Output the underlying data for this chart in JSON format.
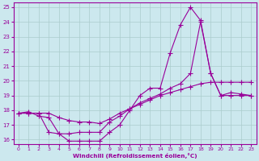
{
  "xlabel": "Windchill (Refroidissement éolien,°C)",
  "bg_color": "#cce8ee",
  "line_color": "#990099",
  "grid_color": "#aacccc",
  "xlim": [
    -0.5,
    23.5
  ],
  "ylim": [
    15.7,
    25.3
  ],
  "yticks": [
    16,
    17,
    18,
    19,
    20,
    21,
    22,
    23,
    24,
    25
  ],
  "xticks": [
    0,
    1,
    2,
    3,
    4,
    5,
    6,
    7,
    8,
    9,
    10,
    11,
    12,
    13,
    14,
    15,
    16,
    17,
    18,
    19,
    20,
    21,
    22,
    23
  ],
  "line1_x": [
    0,
    1,
    2,
    3,
    4,
    5,
    6,
    7,
    8,
    9,
    10,
    11,
    12,
    13,
    14,
    15,
    16,
    17,
    18,
    19,
    20,
    21,
    22,
    23
  ],
  "line1_y": [
    17.8,
    17.9,
    17.6,
    17.5,
    16.4,
    15.9,
    15.9,
    15.9,
    15.9,
    16.5,
    17.0,
    18.0,
    19.0,
    19.5,
    19.5,
    21.9,
    23.8,
    25.0,
    24.1,
    20.5,
    19.0,
    19.2,
    19.1,
    19.0
  ],
  "line2_x": [
    0,
    1,
    2,
    3,
    4,
    5,
    6,
    7,
    8,
    9,
    10,
    11,
    12,
    13,
    14,
    15,
    16,
    17,
    18,
    19,
    20,
    21,
    22,
    23
  ],
  "line2_y": [
    17.8,
    17.8,
    17.8,
    16.5,
    16.4,
    16.4,
    16.5,
    16.5,
    16.5,
    17.2,
    17.6,
    18.1,
    18.5,
    18.8,
    19.1,
    19.5,
    19.8,
    20.5,
    24.0,
    20.5,
    19.0,
    19.0,
    19.0,
    19.0
  ],
  "line3_x": [
    0,
    1,
    2,
    3,
    4,
    5,
    6,
    7,
    8,
    9,
    10,
    11,
    12,
    13,
    14,
    15,
    16,
    17,
    18,
    19,
    20,
    21,
    22,
    23
  ],
  "line3_y": [
    17.8,
    17.8,
    17.8,
    17.8,
    17.5,
    17.3,
    17.2,
    17.2,
    17.1,
    17.4,
    17.8,
    18.1,
    18.4,
    18.7,
    19.0,
    19.2,
    19.4,
    19.6,
    19.8,
    19.9,
    19.9,
    19.9,
    19.9,
    19.9
  ]
}
